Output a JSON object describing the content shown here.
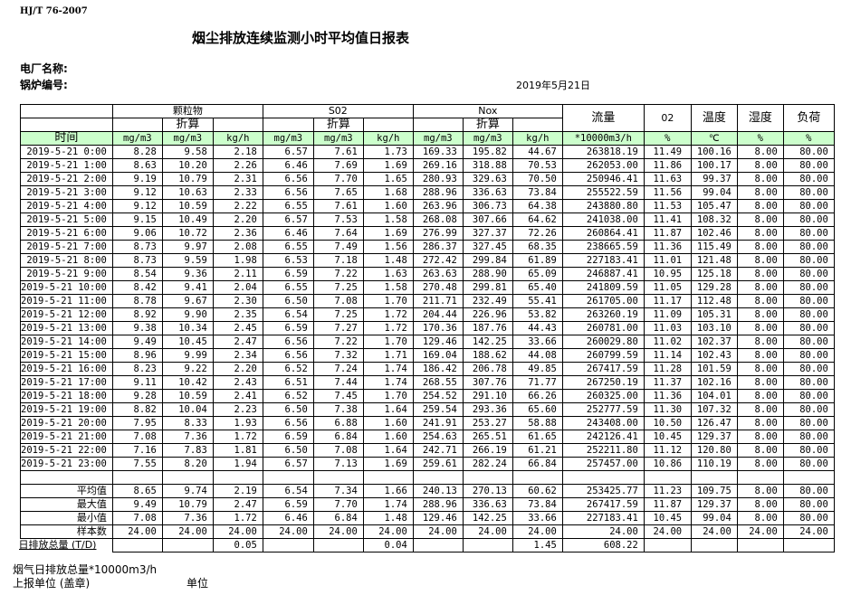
{
  "standard": "HJ/T  76-2007",
  "title": "烟尘排放连续监测小时平均值日报表",
  "plant_label": "电厂名称:",
  "boiler_label": "锅炉编号:",
  "date": "2019年5月21日",
  "header": {
    "groups": [
      "颗粒物",
      "S02",
      "Nox"
    ],
    "converted": "折算",
    "flow": "流量",
    "o2": "02",
    "temp": "温度",
    "humidity": "湿度",
    "load": "负荷",
    "units": [
      "时间",
      "mg/m3",
      "mg/m3",
      "kg/h",
      "mg/m3",
      "mg/m3",
      "kg/h",
      "mg/m3",
      "mg/m3",
      "kg/h",
      "*10000m3/h",
      "%",
      "℃",
      "%",
      "%"
    ]
  },
  "rows": [
    [
      "2019-5-21 0:00",
      "8.28",
      "9.58",
      "2.18",
      "6.57",
      "7.61",
      "1.73",
      "169.33",
      "195.82",
      "44.67",
      "263818.19",
      "11.49",
      "100.16",
      "8.00",
      "80.00"
    ],
    [
      "2019-5-21 1:00",
      "8.63",
      "10.20",
      "2.26",
      "6.46",
      "7.69",
      "1.69",
      "269.16",
      "318.88",
      "70.53",
      "262053.00",
      "11.86",
      "100.17",
      "8.00",
      "80.00"
    ],
    [
      "2019-5-21 2:00",
      "9.19",
      "10.79",
      "2.31",
      "6.56",
      "7.70",
      "1.65",
      "280.93",
      "329.63",
      "70.50",
      "250946.41",
      "11.63",
      "99.37",
      "8.00",
      "80.00"
    ],
    [
      "2019-5-21 3:00",
      "9.12",
      "10.63",
      "2.33",
      "6.56",
      "7.65",
      "1.68",
      "288.96",
      "336.63",
      "73.84",
      "255522.59",
      "11.56",
      "99.04",
      "8.00",
      "80.00"
    ],
    [
      "2019-5-21 4:00",
      "9.12",
      "10.59",
      "2.22",
      "6.55",
      "7.61",
      "1.60",
      "263.96",
      "306.73",
      "64.38",
      "243880.80",
      "11.53",
      "105.47",
      "8.00",
      "80.00"
    ],
    [
      "2019-5-21 5:00",
      "9.15",
      "10.49",
      "2.20",
      "6.57",
      "7.53",
      "1.58",
      "268.08",
      "307.66",
      "64.62",
      "241038.00",
      "11.41",
      "108.32",
      "8.00",
      "80.00"
    ],
    [
      "2019-5-21 6:00",
      "9.06",
      "10.72",
      "2.36",
      "6.46",
      "7.64",
      "1.69",
      "276.99",
      "327.37",
      "72.26",
      "260864.41",
      "11.87",
      "102.46",
      "8.00",
      "80.00"
    ],
    [
      "2019-5-21 7:00",
      "8.73",
      "9.97",
      "2.08",
      "6.55",
      "7.49",
      "1.56",
      "286.37",
      "327.45",
      "68.35",
      "238665.59",
      "11.36",
      "115.49",
      "8.00",
      "80.00"
    ],
    [
      "2019-5-21 8:00",
      "8.73",
      "9.59",
      "1.98",
      "6.53",
      "7.18",
      "1.48",
      "272.42",
      "299.84",
      "61.89",
      "227183.41",
      "11.01",
      "121.48",
      "8.00",
      "80.00"
    ],
    [
      "2019-5-21 9:00",
      "8.54",
      "9.36",
      "2.11",
      "6.59",
      "7.22",
      "1.63",
      "263.63",
      "288.90",
      "65.09",
      "246887.41",
      "10.95",
      "125.18",
      "8.00",
      "80.00"
    ],
    [
      "2019-5-21 10:00",
      "8.42",
      "9.41",
      "2.04",
      "6.55",
      "7.25",
      "1.58",
      "270.48",
      "299.81",
      "65.40",
      "241809.59",
      "11.05",
      "129.28",
      "8.00",
      "80.00"
    ],
    [
      "2019-5-21 11:00",
      "8.78",
      "9.67",
      "2.30",
      "6.50",
      "7.08",
      "1.70",
      "211.71",
      "232.49",
      "55.41",
      "261705.00",
      "11.17",
      "112.48",
      "8.00",
      "80.00"
    ],
    [
      "2019-5-21 12:00",
      "8.92",
      "9.90",
      "2.35",
      "6.54",
      "7.25",
      "1.72",
      "204.44",
      "226.96",
      "53.82",
      "263260.19",
      "11.09",
      "105.31",
      "8.00",
      "80.00"
    ],
    [
      "2019-5-21 13:00",
      "9.38",
      "10.34",
      "2.45",
      "6.59",
      "7.27",
      "1.72",
      "170.36",
      "187.76",
      "44.43",
      "260781.00",
      "11.03",
      "103.10",
      "8.00",
      "80.00"
    ],
    [
      "2019-5-21 14:00",
      "9.49",
      "10.45",
      "2.47",
      "6.56",
      "7.22",
      "1.70",
      "129.46",
      "142.25",
      "33.66",
      "260029.80",
      "11.02",
      "102.37",
      "8.00",
      "80.00"
    ],
    [
      "2019-5-21 15:00",
      "8.96",
      "9.99",
      "2.34",
      "6.56",
      "7.32",
      "1.71",
      "169.04",
      "188.62",
      "44.08",
      "260799.59",
      "11.14",
      "102.43",
      "8.00",
      "80.00"
    ],
    [
      "2019-5-21 16:00",
      "8.23",
      "9.22",
      "2.20",
      "6.52",
      "7.24",
      "1.74",
      "186.42",
      "206.78",
      "49.85",
      "267417.59",
      "11.28",
      "101.59",
      "8.00",
      "80.00"
    ],
    [
      "2019-5-21 17:00",
      "9.11",
      "10.42",
      "2.43",
      "6.51",
      "7.44",
      "1.74",
      "268.55",
      "307.76",
      "71.77",
      "267250.19",
      "11.37",
      "102.16",
      "8.00",
      "80.00"
    ],
    [
      "2019-5-21 18:00",
      "9.28",
      "10.59",
      "2.41",
      "6.52",
      "7.45",
      "1.70",
      "254.52",
      "291.10",
      "66.26",
      "260325.00",
      "11.36",
      "104.01",
      "8.00",
      "80.00"
    ],
    [
      "2019-5-21 19:00",
      "8.82",
      "10.04",
      "2.23",
      "6.50",
      "7.38",
      "1.64",
      "259.54",
      "293.36",
      "65.60",
      "252777.59",
      "11.30",
      "107.32",
      "8.00",
      "80.00"
    ],
    [
      "2019-5-21 20:00",
      "7.95",
      "8.33",
      "1.93",
      "6.56",
      "6.88",
      "1.60",
      "241.91",
      "253.27",
      "58.88",
      "243408.00",
      "10.50",
      "126.47",
      "8.00",
      "80.00"
    ],
    [
      "2019-5-21 21:00",
      "7.08",
      "7.36",
      "1.72",
      "6.59",
      "6.84",
      "1.60",
      "254.63",
      "265.51",
      "61.65",
      "242126.41",
      "10.45",
      "129.37",
      "8.00",
      "80.00"
    ],
    [
      "2019-5-21 22:00",
      "7.16",
      "7.83",
      "1.81",
      "6.50",
      "7.08",
      "1.64",
      "242.71",
      "266.19",
      "61.21",
      "252211.80",
      "11.12",
      "120.80",
      "8.00",
      "80.00"
    ],
    [
      "2019-5-21 23:00",
      "7.55",
      "8.20",
      "1.94",
      "6.57",
      "7.13",
      "1.69",
      "259.61",
      "282.24",
      "66.84",
      "257457.00",
      "10.86",
      "110.19",
      "8.00",
      "80.00"
    ]
  ],
  "summary": [
    [
      "平均值",
      "8.65",
      "9.74",
      "2.19",
      "6.54",
      "7.34",
      "1.66",
      "240.13",
      "270.13",
      "60.62",
      "253425.77",
      "11.23",
      "109.75",
      "8.00",
      "80.00"
    ],
    [
      "最大值",
      "9.49",
      "10.79",
      "2.47",
      "6.59",
      "7.70",
      "1.74",
      "288.96",
      "336.63",
      "73.84",
      "267417.59",
      "11.87",
      "129.37",
      "8.00",
      "80.00"
    ],
    [
      "最小值",
      "7.08",
      "7.36",
      "1.72",
      "6.46",
      "6.84",
      "1.48",
      "129.46",
      "142.25",
      "33.66",
      "227183.41",
      "10.45",
      "99.04",
      "8.00",
      "80.00"
    ],
    [
      "样本数",
      "24.00",
      "24.00",
      "24.00",
      "24.00",
      "24.00",
      "24.00",
      "24.00",
      "24.00",
      "24.00",
      "24.00",
      "24.00",
      "24.00",
      "24.00",
      "24.00"
    ]
  ],
  "daily_total": [
    "日排放总量 (T/D)",
    "",
    "",
    "0.05",
    "",
    "",
    "0.04",
    "",
    "",
    "1.45",
    "608.22",
    "",
    "",
    "",
    ""
  ],
  "footer": {
    "flue_gas": "烟气日排放总量*10000m3/h",
    "report_unit": "上报单位 (盖章)",
    "unit": "单位"
  }
}
